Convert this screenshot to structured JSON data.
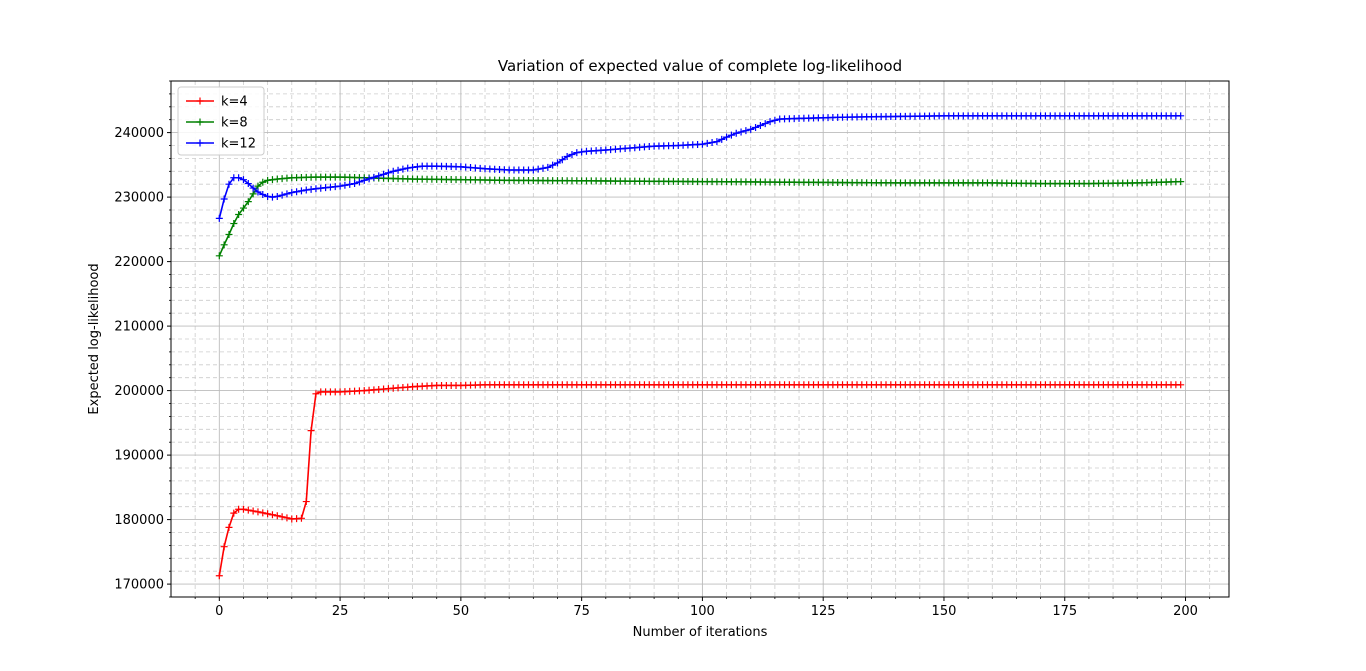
{
  "chart_data": {
    "type": "line",
    "title": "Variation of expected value of complete log-likelihood",
    "xlabel": "Number of iterations",
    "ylabel": "Expected log-likelihood",
    "xlim": [
      -10,
      209
    ],
    "ylim": [
      168000,
      248000
    ],
    "xticks": [
      0,
      25,
      50,
      75,
      100,
      125,
      150,
      175,
      200
    ],
    "yticks": [
      170000,
      180000,
      190000,
      200000,
      210000,
      220000,
      230000,
      240000
    ],
    "grid": true,
    "grid_style": "dashed",
    "legend_position": "upper-left",
    "marker": "+",
    "series": [
      {
        "name": "k=4",
        "color": "#ff0000",
        "points": [
          [
            0,
            171300
          ],
          [
            1,
            175800
          ],
          [
            2,
            178800
          ],
          [
            3,
            181000
          ],
          [
            4,
            181600
          ],
          [
            5,
            181600
          ],
          [
            8,
            181200
          ],
          [
            12,
            180600
          ],
          [
            15,
            180100
          ],
          [
            17,
            180200
          ],
          [
            18,
            182800
          ],
          [
            19,
            193800
          ],
          [
            20,
            199500
          ],
          [
            21,
            199800
          ],
          [
            25,
            199800
          ],
          [
            30,
            200000
          ],
          [
            35,
            200300
          ],
          [
            40,
            200600
          ],
          [
            45,
            200800
          ],
          [
            50,
            200800
          ],
          [
            55,
            200900
          ],
          [
            60,
            200900
          ],
          [
            199,
            200900
          ]
        ]
      },
      {
        "name": "k=8",
        "color": "#008000",
        "points": [
          [
            0,
            220900
          ],
          [
            1,
            222600
          ],
          [
            2,
            224200
          ],
          [
            3,
            225900
          ],
          [
            4,
            227300
          ],
          [
            5,
            228300
          ],
          [
            6,
            229300
          ],
          [
            7,
            230500
          ],
          [
            8,
            231700
          ],
          [
            9,
            232300
          ],
          [
            10,
            232600
          ],
          [
            12,
            232800
          ],
          [
            15,
            233000
          ],
          [
            20,
            233100
          ],
          [
            25,
            233100
          ],
          [
            30,
            233000
          ],
          [
            35,
            232900
          ],
          [
            40,
            232800
          ],
          [
            50,
            232700
          ],
          [
            60,
            232600
          ],
          [
            80,
            232500
          ],
          [
            100,
            232400
          ],
          [
            120,
            232300
          ],
          [
            140,
            232200
          ],
          [
            160,
            232200
          ],
          [
            170,
            232100
          ],
          [
            180,
            232100
          ],
          [
            190,
            232200
          ],
          [
            199,
            232400
          ]
        ]
      },
      {
        "name": "k=12",
        "color": "#0000ff",
        "points": [
          [
            0,
            226700
          ],
          [
            1,
            229700
          ],
          [
            2,
            232000
          ],
          [
            3,
            233000
          ],
          [
            4,
            233000
          ],
          [
            5,
            232700
          ],
          [
            6,
            232100
          ],
          [
            7,
            231400
          ],
          [
            8,
            230800
          ],
          [
            9,
            230400
          ],
          [
            10,
            230100
          ],
          [
            11,
            230000
          ],
          [
            12,
            230100
          ],
          [
            13,
            230300
          ],
          [
            15,
            230700
          ],
          [
            18,
            231100
          ],
          [
            20,
            231300
          ],
          [
            25,
            231700
          ],
          [
            28,
            232100
          ],
          [
            30,
            232600
          ],
          [
            33,
            233300
          ],
          [
            36,
            234000
          ],
          [
            39,
            234500
          ],
          [
            42,
            234800
          ],
          [
            45,
            234800
          ],
          [
            50,
            234700
          ],
          [
            55,
            234400
          ],
          [
            60,
            234200
          ],
          [
            65,
            234200
          ],
          [
            68,
            234600
          ],
          [
            70,
            235300
          ],
          [
            72,
            236300
          ],
          [
            74,
            236900
          ],
          [
            76,
            237100
          ],
          [
            80,
            237300
          ],
          [
            85,
            237600
          ],
          [
            90,
            237900
          ],
          [
            95,
            238000
          ],
          [
            100,
            238200
          ],
          [
            103,
            238600
          ],
          [
            105,
            239300
          ],
          [
            107,
            239900
          ],
          [
            110,
            240500
          ],
          [
            112,
            241100
          ],
          [
            114,
            241700
          ],
          [
            116,
            242100
          ],
          [
            120,
            242200
          ],
          [
            125,
            242300
          ],
          [
            130,
            242400
          ],
          [
            140,
            242500
          ],
          [
            150,
            242600
          ],
          [
            160,
            242600
          ],
          [
            199,
            242600
          ]
        ]
      }
    ]
  }
}
